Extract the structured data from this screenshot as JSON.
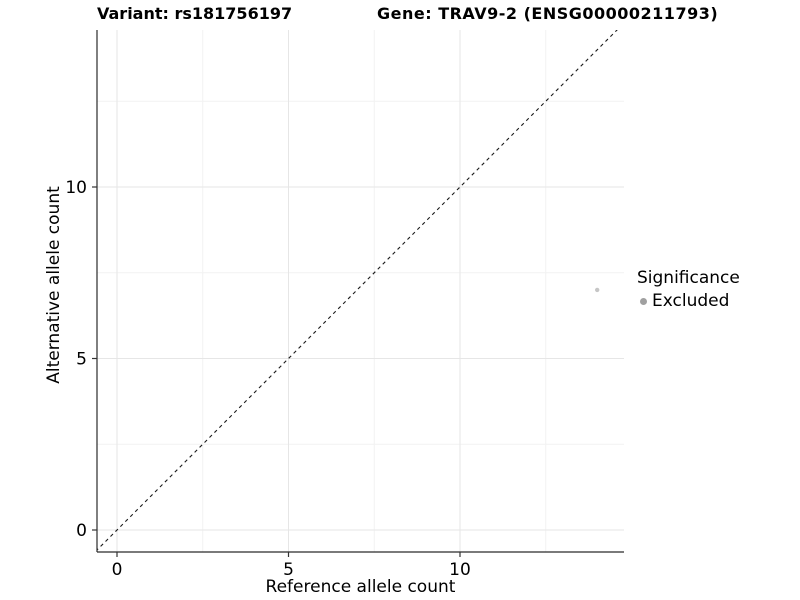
{
  "chart_data": {
    "type": "scatter",
    "title_variant": "Variant: rs181756197",
    "title_gene": "Gene: TRAV9-2 (ENSG00000211793)",
    "xlabel": "Reference allele count",
    "ylabel": "Alternative allele count",
    "x_ticks": [
      0,
      5,
      10
    ],
    "y_ticks": [
      0,
      5,
      10
    ],
    "x_minor_gridlines": [
      2.5,
      7.5,
      12.5
    ],
    "y_minor_gridlines": [
      2.5,
      7.5,
      12.5
    ],
    "xlim": [
      -0.65,
      14.75
    ],
    "ylim": [
      -0.65,
      14.6
    ],
    "grid": true,
    "legend_position": "right",
    "identity_line": {
      "slope": 1,
      "intercept": 0,
      "linetype": "dashed",
      "color": "#1a1a1a"
    },
    "series": [
      {
        "name": "Excluded",
        "points": [
          {
            "x": 14,
            "y": 7
          }
        ],
        "color": "#c6c6c6",
        "radius": 2.2
      }
    ],
    "legend": {
      "title": "Significance",
      "entries": [
        {
          "label": "Excluded",
          "color": "#a0a0a0"
        }
      ]
    },
    "colors": {
      "background": "#ffffff",
      "grid_major": "#e6e6e6",
      "grid_minor": "#f2f2f2",
      "axis_line": "#2b2b2b",
      "tick_mark": "#333333",
      "tick_label": "#000000"
    }
  }
}
